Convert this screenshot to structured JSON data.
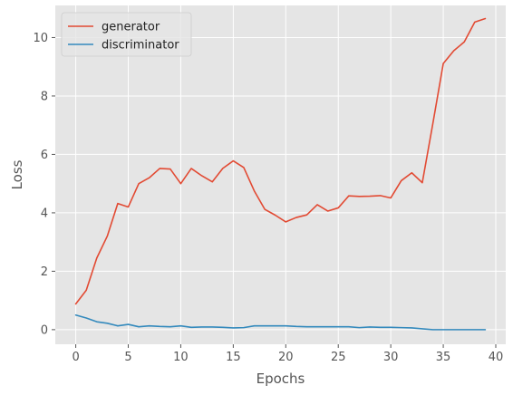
{
  "chart_data": {
    "type": "line",
    "xlabel": "Epochs",
    "ylabel": "Loss",
    "xlim": [
      -1.95,
      40.95
    ],
    "ylim": [
      -0.5,
      11.1
    ],
    "xticks": [
      0,
      5,
      10,
      15,
      20,
      25,
      30,
      35,
      40
    ],
    "yticks": [
      0,
      2,
      4,
      6,
      8,
      10
    ],
    "grid": true,
    "legend_position": "top-left",
    "x": [
      0,
      1,
      2,
      3,
      4,
      5,
      6,
      7,
      8,
      9,
      10,
      11,
      12,
      13,
      14,
      15,
      16,
      17,
      18,
      19,
      20,
      21,
      22,
      23,
      24,
      25,
      26,
      27,
      28,
      29,
      30,
      31,
      32,
      33,
      34,
      35,
      36,
      37,
      38,
      39
    ],
    "series": [
      {
        "name": "generator",
        "color": "#E24A33",
        "values": [
          0.88,
          1.35,
          2.45,
          3.2,
          4.32,
          4.2,
          5.0,
          5.2,
          5.52,
          5.5,
          5.0,
          5.52,
          5.27,
          5.06,
          5.52,
          5.78,
          5.55,
          4.75,
          4.12,
          3.92,
          3.69,
          3.84,
          3.93,
          4.28,
          4.06,
          4.17,
          4.58,
          4.56,
          4.57,
          4.59,
          4.51,
          5.1,
          5.37,
          5.03,
          7.04,
          9.11,
          9.55,
          9.85,
          10.53,
          10.65
        ]
      },
      {
        "name": "discriminator",
        "color": "#348ABD",
        "values": [
          0.5,
          0.4,
          0.27,
          0.22,
          0.13,
          0.18,
          0.1,
          0.13,
          0.11,
          0.1,
          0.13,
          0.08,
          0.09,
          0.09,
          0.08,
          0.06,
          0.07,
          0.13,
          0.13,
          0.13,
          0.13,
          0.11,
          0.1,
          0.1,
          0.1,
          0.1,
          0.1,
          0.07,
          0.09,
          0.08,
          0.08,
          0.07,
          0.06,
          0.03,
          0.0,
          0.0,
          0.0,
          0.0,
          0.0,
          0.0
        ]
      }
    ]
  }
}
